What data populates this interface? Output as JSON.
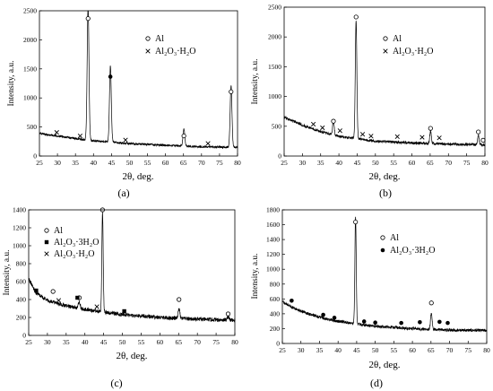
{
  "figure": {
    "panels": [
      "a",
      "b",
      "c",
      "d"
    ]
  },
  "chart_data": [
    {
      "type": "line",
      "panel_label": "(a)",
      "xlabel": "2θ, deg.",
      "ylabel": "Intensity, a.u.",
      "xlim": [
        25,
        80
      ],
      "ylim": [
        0,
        2500
      ],
      "xticks": [
        25,
        30,
        35,
        40,
        45,
        50,
        55,
        60,
        65,
        70,
        75,
        80
      ],
      "yticks": [
        0,
        500,
        1000,
        1500,
        2000,
        2500
      ],
      "legend": [
        {
          "marker": "open-circle",
          "label": "Al"
        },
        {
          "marker": "cross",
          "label": "Al₂O₃·H₂O"
        }
      ],
      "baseline": {
        "x": [
          25,
          30,
          35,
          40,
          50,
          60,
          70,
          80
        ],
        "y": [
          390,
          345,
          300,
          260,
          215,
          185,
          160,
          150
        ]
      },
      "peaks": [
        {
          "x": 38.5,
          "height": 2330,
          "width": 0.35
        },
        {
          "x": 44.7,
          "height": 1320,
          "width": 0.35
        },
        {
          "x": 65.1,
          "height": 300,
          "width": 0.35
        },
        {
          "x": 78.2,
          "height": 1060,
          "width": 0.35
        }
      ],
      "markers": [
        {
          "type": "open-circle",
          "x": 38.5,
          "y": 2320
        },
        {
          "type": "filled-circle",
          "x": 44.7,
          "y": 1320
        },
        {
          "type": "open-circle",
          "x": 65.1,
          "y": 300
        },
        {
          "type": "open-circle",
          "x": 78.2,
          "y": 1060
        },
        {
          "type": "cross",
          "x": 29.8,
          "y": 360
        },
        {
          "type": "cross",
          "x": 36.3,
          "y": 300
        },
        {
          "type": "cross",
          "x": 48.9,
          "y": 230
        },
        {
          "type": "cross",
          "x": 71.8,
          "y": 170
        }
      ],
      "noise": 18
    },
    {
      "type": "line",
      "panel_label": "(b)",
      "xlabel": "2θ, deg.",
      "ylabel": "Intensity, a.u.",
      "xlim": [
        25,
        80
      ],
      "ylim": [
        0,
        2500
      ],
      "xticks": [
        25,
        30,
        35,
        40,
        45,
        50,
        55,
        60,
        65,
        70,
        75,
        80
      ],
      "yticks": [
        0,
        500,
        1000,
        1500,
        2000,
        2500
      ],
      "legend": [
        {
          "marker": "open-circle",
          "label": "Al"
        },
        {
          "marker": "cross",
          "label": "Al₂O₃·H₂O"
        }
      ],
      "baseline": {
        "x": [
          25,
          30,
          35,
          40,
          50,
          60,
          70,
          80
        ],
        "y": [
          650,
          520,
          410,
          330,
          250,
          220,
          200,
          190
        ]
      },
      "peaks": [
        {
          "x": 38.5,
          "height": 250,
          "width": 0.3
        },
        {
          "x": 44.7,
          "height": 2000,
          "width": 0.3
        },
        {
          "x": 65.1,
          "height": 200,
          "width": 0.3
        },
        {
          "x": 78.2,
          "height": 150,
          "width": 0.3
        }
      ],
      "markers": [
        {
          "type": "open-circle",
          "x": 38.5,
          "y": 540
        },
        {
          "type": "open-circle",
          "x": 44.7,
          "y": 2290
        },
        {
          "type": "open-circle",
          "x": 65.1,
          "y": 420
        },
        {
          "type": "open-circle",
          "x": 78.2,
          "y": 360
        },
        {
          "type": "open-circle",
          "x": 79.5,
          "y": 220
        },
        {
          "type": "cross",
          "x": 33.0,
          "y": 490
        },
        {
          "type": "cross",
          "x": 35.5,
          "y": 430
        },
        {
          "type": "cross",
          "x": 40.3,
          "y": 380
        },
        {
          "type": "cross",
          "x": 46.5,
          "y": 320
        },
        {
          "type": "cross",
          "x": 48.8,
          "y": 290
        },
        {
          "type": "cross",
          "x": 56.0,
          "y": 280
        },
        {
          "type": "cross",
          "x": 62.8,
          "y": 270
        },
        {
          "type": "cross",
          "x": 67.5,
          "y": 260
        }
      ],
      "noise": 22
    },
    {
      "type": "line",
      "panel_label": "(c)",
      "xlabel": "2θ, deg.",
      "ylabel": "Intensity, a.u.",
      "xlim": [
        25,
        80
      ],
      "ylim": [
        0,
        1400
      ],
      "xticks": [
        25,
        30,
        35,
        40,
        45,
        50,
        55,
        60,
        65,
        70,
        75,
        80
      ],
      "yticks": [
        0,
        200,
        400,
        600,
        800,
        1000,
        1200,
        1400
      ],
      "legend": [
        {
          "marker": "open-circle",
          "label": "Al"
        },
        {
          "marker": "filled-square",
          "label": "Al₂O₃·3H₂O"
        },
        {
          "marker": "cross",
          "label": "Al₂O₃·H₂O"
        }
      ],
      "baseline": {
        "x": [
          25,
          27,
          30,
          35,
          40,
          50,
          60,
          70,
          80
        ],
        "y": [
          630,
          470,
          390,
          330,
          290,
          230,
          200,
          180,
          170
        ]
      },
      "peaks": [
        {
          "x": 38.5,
          "height": 80,
          "width": 0.3
        },
        {
          "x": 44.7,
          "height": 1100,
          "width": 0.25
        },
        {
          "x": 65.1,
          "height": 110,
          "width": 0.3
        },
        {
          "x": 78.2,
          "height": 40,
          "width": 0.3
        }
      ],
      "markers": [
        {
          "type": "open-circle",
          "x": 44.7,
          "y": 1370
        },
        {
          "type": "open-circle",
          "x": 65.1,
          "y": 370
        },
        {
          "type": "open-circle",
          "x": 38.5,
          "y": 390
        },
        {
          "type": "open-circle",
          "x": 78.2,
          "y": 210
        },
        {
          "type": "open-circle",
          "x": 31.5,
          "y": 460
        },
        {
          "type": "filled-square",
          "x": 27.0,
          "y": 470
        },
        {
          "type": "filled-square",
          "x": 38.0,
          "y": 390
        },
        {
          "type": "filled-square",
          "x": 50.5,
          "y": 240
        },
        {
          "type": "cross",
          "x": 33.0,
          "y": 360
        },
        {
          "type": "cross",
          "x": 43.2,
          "y": 290
        }
      ],
      "noise": 22
    },
    {
      "type": "line",
      "panel_label": "(d)",
      "xlabel": "2θ, deg.",
      "ylabel": "Intensity, a.u.",
      "xlim": [
        25,
        80
      ],
      "ylim": [
        0,
        1800
      ],
      "xticks": [
        25,
        30,
        35,
        40,
        45,
        50,
        55,
        60,
        65,
        70,
        75,
        80
      ],
      "yticks": [
        0,
        200,
        400,
        600,
        800,
        1000,
        1200,
        1400,
        1600,
        1800
      ],
      "legend": [
        {
          "marker": "open-circle",
          "label": "Al"
        },
        {
          "marker": "filled-circle",
          "label": "Al₂O₃·3H₂O"
        }
      ],
      "baseline": {
        "x": [
          25,
          28,
          32,
          36,
          40,
          50,
          60,
          70,
          80
        ],
        "y": [
          560,
          480,
          400,
          340,
          300,
          230,
          200,
          180,
          175
        ]
      },
      "peaks": [
        {
          "x": 44.7,
          "height": 1450,
          "width": 0.25
        },
        {
          "x": 65.1,
          "height": 230,
          "width": 0.3
        }
      ],
      "markers": [
        {
          "type": "open-circle",
          "x": 44.7,
          "y": 1600
        },
        {
          "type": "open-circle",
          "x": 65.1,
          "y": 510
        },
        {
          "type": "filled-circle",
          "x": 27.5,
          "y": 540
        },
        {
          "type": "filled-circle",
          "x": 36.0,
          "y": 350
        },
        {
          "type": "filled-circle",
          "x": 39.0,
          "y": 310
        },
        {
          "type": "filled-circle",
          "x": 47.0,
          "y": 260
        },
        {
          "type": "filled-circle",
          "x": 50.0,
          "y": 245
        },
        {
          "type": "filled-circle",
          "x": 57.0,
          "y": 240
        },
        {
          "type": "filled-circle",
          "x": 62.0,
          "y": 250
        },
        {
          "type": "filled-circle",
          "x": 67.3,
          "y": 255
        },
        {
          "type": "filled-circle",
          "x": 69.5,
          "y": 240
        }
      ],
      "noise": 20
    }
  ]
}
